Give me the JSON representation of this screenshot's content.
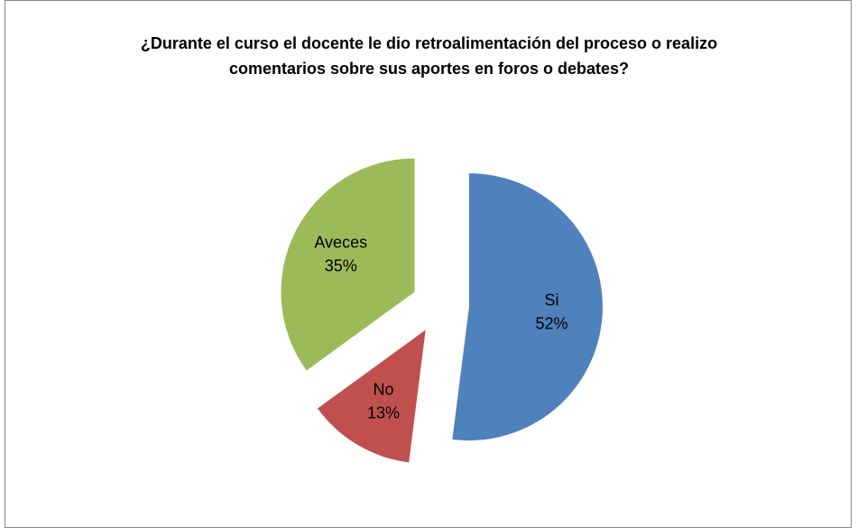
{
  "chart_data": {
    "type": "pie",
    "title": "¿Durante el curso el docente le dio retroalimentación del proceso o realizo comentarios sobre sus aportes en foros o debates?",
    "categories": [
      "Si",
      "No",
      "Aveces"
    ],
    "values": [
      52,
      13,
      35
    ],
    "value_labels": [
      "52%",
      "13%",
      "35%"
    ],
    "colors": [
      "#4f81bd",
      "#c0504d",
      "#9bbb59"
    ],
    "exploded": true
  }
}
